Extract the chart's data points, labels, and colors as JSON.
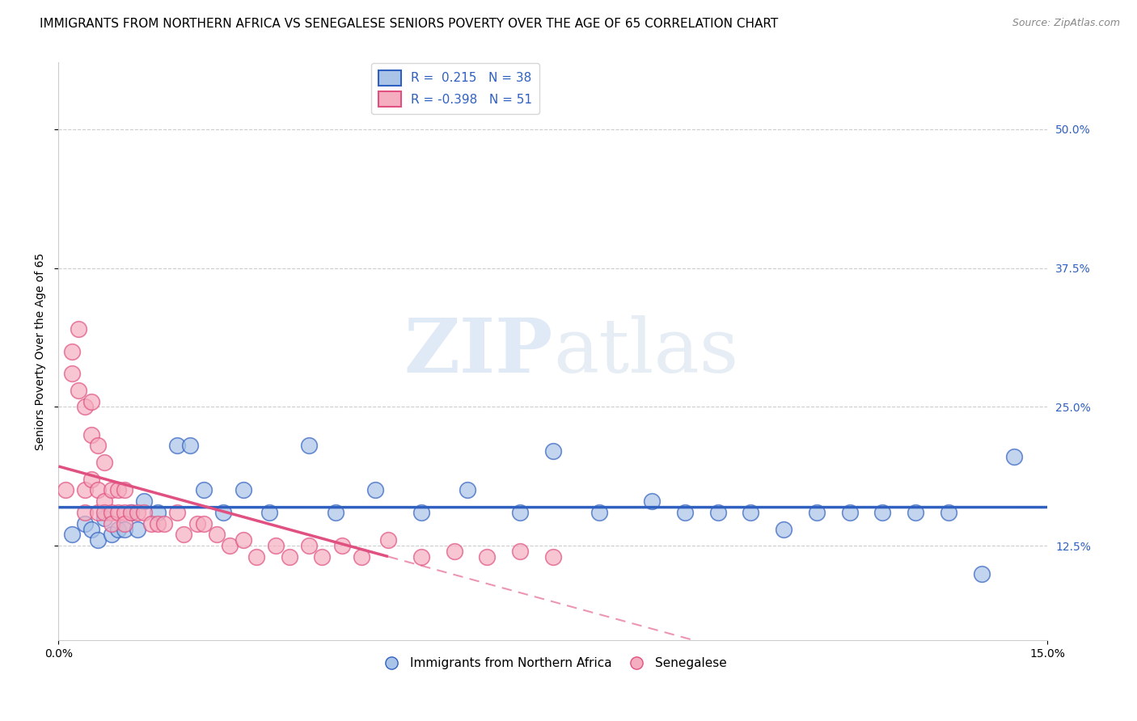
{
  "title": "IMMIGRANTS FROM NORTHERN AFRICA VS SENEGALESE SENIORS POVERTY OVER THE AGE OF 65 CORRELATION CHART",
  "source": "Source: ZipAtlas.com",
  "ylabel": "Seniors Poverty Over the Age of 65",
  "watermark_zip": "ZIP",
  "watermark_atlas": "atlas",
  "R_blue": 0.215,
  "N_blue": 38,
  "R_pink": -0.398,
  "N_pink": 51,
  "blue_color": "#aac4e8",
  "pink_color": "#f5aec0",
  "blue_line_color": "#3060c0",
  "pink_line_color": "#e05080",
  "xmin": 0.0,
  "xmax": 0.15,
  "ymin": 0.04,
  "ymax": 0.56,
  "yticks": [
    0.125,
    0.25,
    0.375,
    0.5
  ],
  "ytick_labels": [
    "12.5%",
    "25.0%",
    "37.5%",
    "50.0%"
  ],
  "xtick_labels": [
    "0.0%",
    "15.0%"
  ],
  "blue_x": [
    0.002,
    0.004,
    0.005,
    0.006,
    0.007,
    0.008,
    0.009,
    0.01,
    0.011,
    0.012,
    0.013,
    0.015,
    0.018,
    0.02,
    0.022,
    0.025,
    0.028,
    0.032,
    0.038,
    0.042,
    0.048,
    0.055,
    0.062,
    0.07,
    0.075,
    0.082,
    0.09,
    0.095,
    0.1,
    0.105,
    0.11,
    0.115,
    0.12,
    0.125,
    0.13,
    0.135,
    0.14,
    0.145
  ],
  "blue_y": [
    0.135,
    0.145,
    0.14,
    0.13,
    0.15,
    0.135,
    0.14,
    0.14,
    0.155,
    0.14,
    0.165,
    0.155,
    0.215,
    0.215,
    0.175,
    0.155,
    0.175,
    0.155,
    0.215,
    0.155,
    0.175,
    0.155,
    0.175,
    0.155,
    0.21,
    0.155,
    0.165,
    0.155,
    0.155,
    0.155,
    0.14,
    0.155,
    0.155,
    0.155,
    0.155,
    0.155,
    0.1,
    0.205
  ],
  "pink_x": [
    0.001,
    0.002,
    0.002,
    0.003,
    0.003,
    0.004,
    0.004,
    0.004,
    0.005,
    0.005,
    0.005,
    0.006,
    0.006,
    0.006,
    0.007,
    0.007,
    0.007,
    0.008,
    0.008,
    0.008,
    0.009,
    0.009,
    0.01,
    0.01,
    0.01,
    0.011,
    0.012,
    0.013,
    0.014,
    0.015,
    0.016,
    0.018,
    0.019,
    0.021,
    0.022,
    0.024,
    0.026,
    0.028,
    0.03,
    0.033,
    0.035,
    0.038,
    0.04,
    0.043,
    0.046,
    0.05,
    0.055,
    0.06,
    0.065,
    0.07,
    0.075
  ],
  "pink_y": [
    0.175,
    0.28,
    0.3,
    0.265,
    0.32,
    0.25,
    0.175,
    0.155,
    0.255,
    0.225,
    0.185,
    0.215,
    0.175,
    0.155,
    0.2,
    0.165,
    0.155,
    0.175,
    0.155,
    0.145,
    0.175,
    0.155,
    0.175,
    0.155,
    0.145,
    0.155,
    0.155,
    0.155,
    0.145,
    0.145,
    0.145,
    0.155,
    0.135,
    0.145,
    0.145,
    0.135,
    0.125,
    0.13,
    0.115,
    0.125,
    0.115,
    0.125,
    0.115,
    0.125,
    0.115,
    0.13,
    0.115,
    0.12,
    0.115,
    0.12,
    0.115
  ],
  "title_fontsize": 11,
  "label_fontsize": 10,
  "tick_fontsize": 10,
  "legend_fontsize": 11
}
